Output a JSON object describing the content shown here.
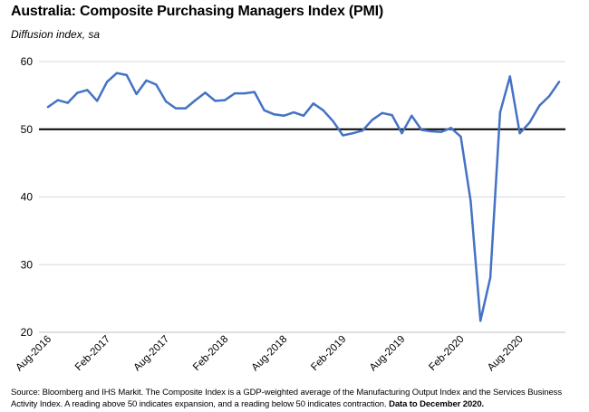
{
  "header": {
    "title": "Australia:  Composite Purchasing Managers Index (PMI)",
    "subtitle": "Diffusion index, sa"
  },
  "footer": {
    "source_text": "Source: Bloomberg and IHS Markit. The Composite Index is a GDP-weighted average of the Manufacturing Output Index and the Services Business Activity Index.  A reading above 50 indicates expansion, and a reading below 50 indicates contraction.",
    "source_bold": "Data to December 2020."
  },
  "colors": {
    "series": "#4472C4",
    "grid": "#d9d9d9",
    "reference_line": "#000000"
  },
  "chart_data": {
    "type": "line",
    "title": "Australia:  Composite Purchasing Managers Index (PMI)",
    "ylabel": "Diffusion index, sa",
    "xlabel": "",
    "ylim": [
      20,
      60
    ],
    "yticks": [
      20,
      30,
      40,
      50,
      60
    ],
    "grid": "horizontal",
    "reference_line": 50,
    "x_tick_labels": [
      "Aug-2016",
      "Feb-2017",
      "Aug-2017",
      "Feb-2018",
      "Aug-2018",
      "Feb-2019",
      "Aug-2019",
      "Feb-2020",
      "Aug-2020"
    ],
    "x_tick_every": 6,
    "x": [
      "Aug-2016",
      "Sep-2016",
      "Oct-2016",
      "Nov-2016",
      "Dec-2016",
      "Jan-2017",
      "Feb-2017",
      "Mar-2017",
      "Apr-2017",
      "May-2017",
      "Jun-2017",
      "Jul-2017",
      "Aug-2017",
      "Sep-2017",
      "Oct-2017",
      "Nov-2017",
      "Dec-2017",
      "Jan-2018",
      "Feb-2018",
      "Mar-2018",
      "Apr-2018",
      "May-2018",
      "Jun-2018",
      "Jul-2018",
      "Aug-2018",
      "Sep-2018",
      "Oct-2018",
      "Nov-2018",
      "Dec-2018",
      "Jan-2019",
      "Feb-2019",
      "Mar-2019",
      "Apr-2019",
      "May-2019",
      "Jun-2019",
      "Jul-2019",
      "Aug-2019",
      "Sep-2019",
      "Oct-2019",
      "Nov-2019",
      "Dec-2019",
      "Jan-2020",
      "Feb-2020",
      "Mar-2020",
      "Apr-2020",
      "May-2020",
      "Jun-2020",
      "Jul-2020",
      "Aug-2020",
      "Sep-2020",
      "Oct-2020",
      "Nov-2020",
      "Dec-2020"
    ],
    "series": [
      {
        "values": [
          53.3,
          54.3,
          53.9,
          55.4,
          55.8,
          54.2,
          57.0,
          58.3,
          58.0,
          55.2,
          57.2,
          56.6,
          54.1,
          53.1,
          53.1,
          54.3,
          55.4,
          54.2,
          54.3,
          55.3,
          55.3,
          55.5,
          52.8,
          52.2,
          52.0,
          52.5,
          52.0,
          53.8,
          52.8,
          51.2,
          49.1,
          49.4,
          49.8,
          51.4,
          52.4,
          52.1,
          49.4,
          52.0,
          49.9,
          49.7,
          49.6,
          50.2,
          48.9,
          39.4,
          21.7,
          28.1,
          52.5,
          57.8,
          49.4,
          51.0,
          53.5,
          54.9,
          57.0
        ]
      }
    ]
  }
}
